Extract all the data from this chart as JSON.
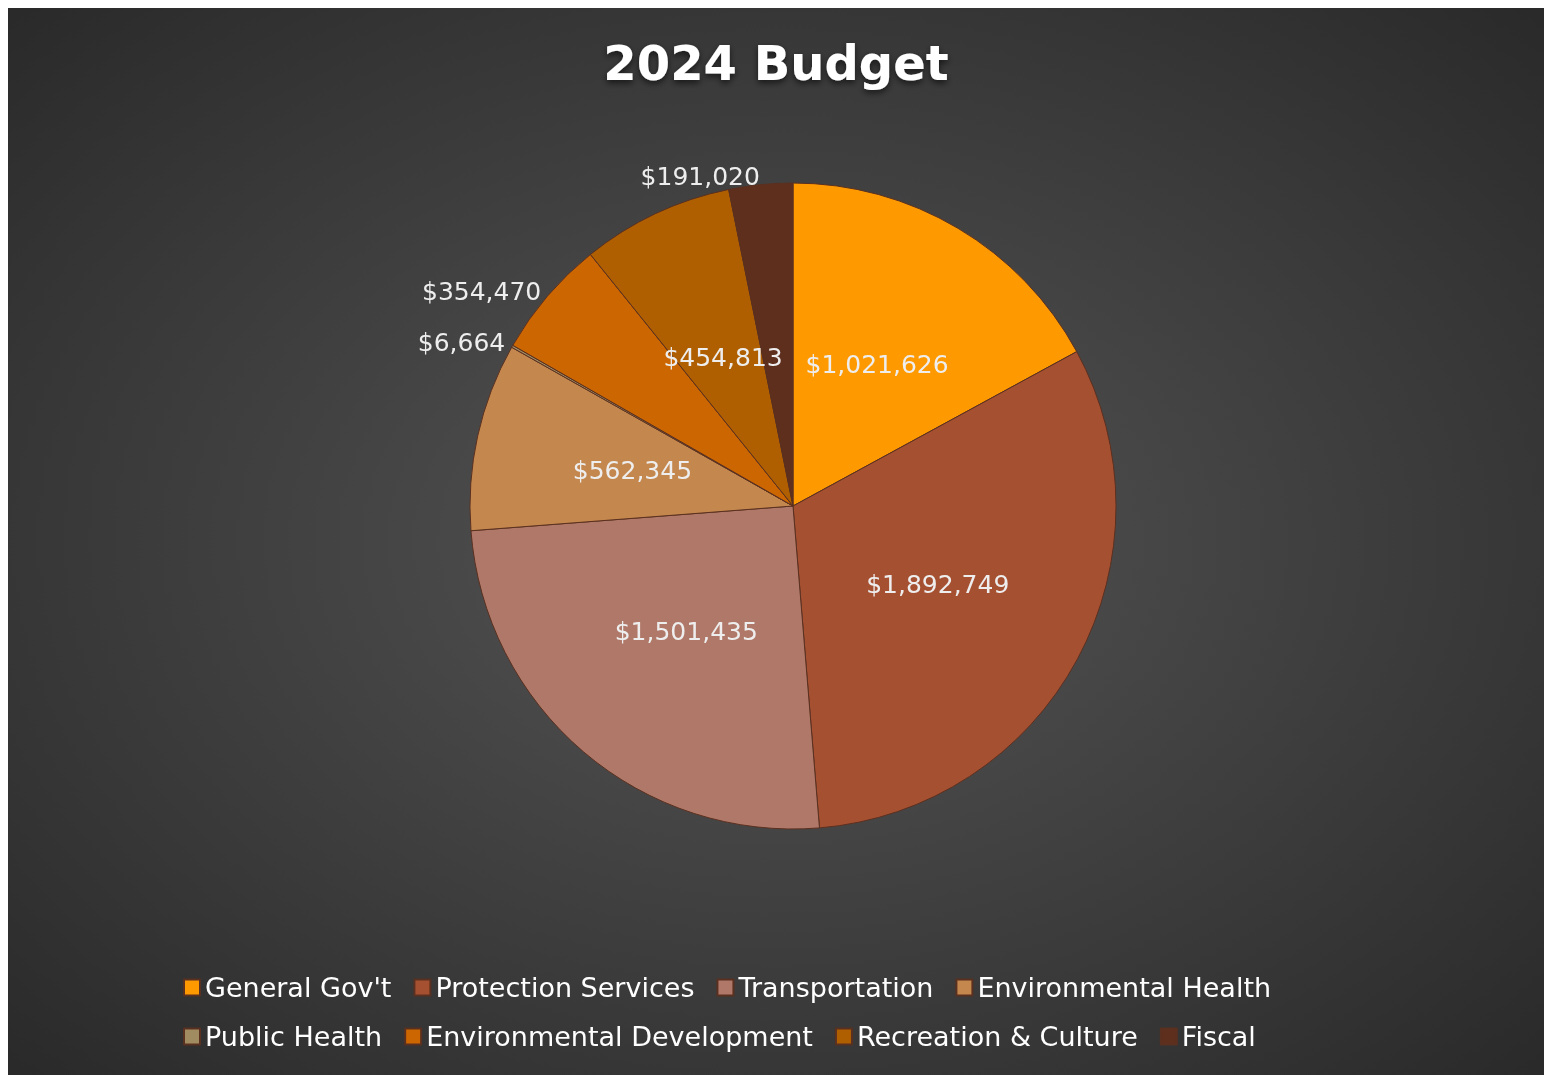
{
  "chart_data": {
    "type": "pie",
    "title": "2024 Budget",
    "categories": [
      "General Gov't",
      "Protection Services",
      "Transportation",
      "Environmental Health",
      "Public Health",
      "Environmental Development",
      "Recreation & Culture",
      "Fiscal"
    ],
    "values": [
      1021626,
      1892749,
      1501435,
      562345,
      6664,
      354470,
      454813,
      191020
    ],
    "value_labels": [
      "$1,021,626",
      "$1,892,749",
      "$1,501,435",
      "$562,345",
      "$6,664",
      "$354,470",
      "$454,813",
      "$191,020"
    ],
    "colors": [
      "#ff9900",
      "#a65032",
      "#b07868",
      "#c4874e",
      "#a08c60",
      "#cc6600",
      "#b05f00",
      "#5f2f1d"
    ],
    "legend": "bottom"
  }
}
